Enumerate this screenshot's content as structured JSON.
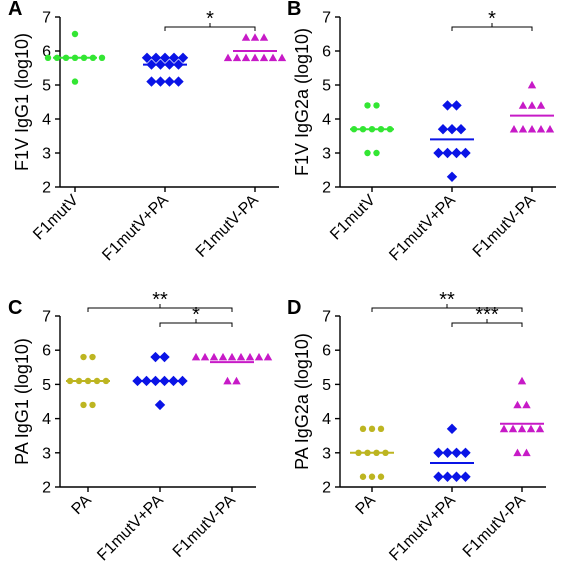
{
  "colors": {
    "green": "#33e633",
    "blue": "#0a14e6",
    "magenta": "#c71ac7",
    "olive": "#bdb521"
  },
  "chart_data": [
    {
      "panel": "A",
      "type": "scatter",
      "ylabel": "F1V IgG1 (log10)",
      "ylim": [
        2,
        7
      ],
      "yticks": [
        "2",
        "3",
        "4",
        "5",
        "6",
        "7"
      ],
      "categories": [
        "F1mutV",
        "F1mutV+PA",
        "F1mutV-PA"
      ],
      "series": [
        {
          "category": "F1mutV",
          "marker": "circle",
          "color": "green",
          "mean": 5.8,
          "values": [
            6.5,
            5.8,
            5.8,
            5.8,
            5.8,
            5.8,
            5.8,
            5.8,
            5.1
          ]
        },
        {
          "category": "F1mutV+PA",
          "marker": "diamond",
          "color": "blue",
          "mean": 5.6,
          "values": [
            5.8,
            5.8,
            5.8,
            5.8,
            5.8,
            5.6,
            5.6,
            5.6,
            5.6,
            5.1,
            5.1,
            5.1,
            5.1
          ]
        },
        {
          "category": "F1mutV-PA",
          "marker": "triangle",
          "color": "magenta",
          "mean": 6.0,
          "values": [
            6.4,
            6.4,
            6.4,
            5.8,
            5.8,
            5.8,
            5.8,
            5.8,
            5.8,
            5.8
          ]
        }
      ],
      "significance": [
        {
          "from": 1,
          "to": 2,
          "label": "*"
        }
      ]
    },
    {
      "panel": "B",
      "type": "scatter",
      "ylabel": "F1V IgG2a (log10)",
      "ylim": [
        2,
        7
      ],
      "yticks": [
        "2",
        "3",
        "4",
        "5",
        "6",
        "7"
      ],
      "categories": [
        "F1mutV",
        "F1mutV+PA",
        "F1mutV-PA"
      ],
      "series": [
        {
          "category": "F1mutV",
          "marker": "circle",
          "color": "green",
          "mean": 3.7,
          "values": [
            4.4,
            4.4,
            3.7,
            3.7,
            3.7,
            3.7,
            3.7,
            3.0,
            3.0
          ]
        },
        {
          "category": "F1mutV+PA",
          "marker": "diamond",
          "color": "blue",
          "mean": 3.4,
          "values": [
            4.4,
            4.4,
            3.7,
            3.7,
            3.7,
            3.0,
            3.0,
            3.0,
            3.0,
            2.3
          ]
        },
        {
          "category": "F1mutV-PA",
          "marker": "triangle",
          "color": "magenta",
          "mean": 4.1,
          "values": [
            5.0,
            4.4,
            4.4,
            4.4,
            3.7,
            3.7,
            3.7,
            3.7,
            3.7
          ]
        }
      ],
      "significance": [
        {
          "from": 1,
          "to": 2,
          "label": "*"
        }
      ]
    },
    {
      "panel": "C",
      "type": "scatter",
      "ylabel": "PA IgG1 (log10)",
      "ylim": [
        2,
        7
      ],
      "yticks": [
        "2",
        "3",
        "4",
        "5",
        "6",
        "7"
      ],
      "categories": [
        "PA",
        "F1mutV+PA",
        "F1mutV-PA"
      ],
      "series": [
        {
          "category": "PA",
          "marker": "circle",
          "color": "olive",
          "mean": 5.1,
          "values": [
            5.8,
            5.8,
            5.1,
            5.1,
            5.1,
            5.1,
            5.1,
            4.4,
            4.4
          ]
        },
        {
          "category": "F1mutV+PA",
          "marker": "diamond",
          "color": "blue",
          "mean": 5.1,
          "values": [
            5.8,
            5.8,
            5.1,
            5.1,
            5.1,
            5.1,
            5.1,
            5.1,
            4.4
          ]
        },
        {
          "category": "F1mutV-PA",
          "marker": "triangle",
          "color": "magenta",
          "mean": 5.65,
          "values": [
            5.8,
            5.8,
            5.8,
            5.8,
            5.8,
            5.8,
            5.8,
            5.8,
            5.8,
            5.1,
            5.1
          ]
        }
      ],
      "significance": [
        {
          "from": 0,
          "to": 2,
          "label": "**",
          "level": 2
        },
        {
          "from": 1,
          "to": 2,
          "label": "*",
          "level": 1
        }
      ]
    },
    {
      "panel": "D",
      "type": "scatter",
      "ylabel": "PA IgG2a (log10)",
      "ylim": [
        2,
        7
      ],
      "yticks": [
        "2",
        "3",
        "4",
        "5",
        "6",
        "7"
      ],
      "categories": [
        "PA",
        "F1mutV+PA",
        "F1mutV-PA"
      ],
      "series": [
        {
          "category": "PA",
          "marker": "circle",
          "color": "olive",
          "mean": 3.0,
          "values": [
            3.7,
            3.7,
            3.7,
            3.0,
            3.0,
            3.0,
            3.0,
            2.3,
            2.3,
            2.3
          ]
        },
        {
          "category": "F1mutV+PA",
          "marker": "diamond",
          "color": "blue",
          "mean": 2.7,
          "values": [
            3.7,
            3.0,
            3.0,
            3.0,
            3.0,
            2.3,
            2.3,
            2.3,
            2.3
          ]
        },
        {
          "category": "F1mutV-PA",
          "marker": "triangle",
          "color": "magenta",
          "mean": 3.85,
          "values": [
            5.1,
            4.4,
            4.4,
            3.7,
            3.7,
            3.7,
            3.7,
            3.7,
            3.0,
            3.0
          ]
        }
      ],
      "significance": [
        {
          "from": 0,
          "to": 2,
          "label": "**",
          "level": 2
        },
        {
          "from": 1,
          "to": 2,
          "label": "***",
          "level": 1
        }
      ]
    }
  ]
}
